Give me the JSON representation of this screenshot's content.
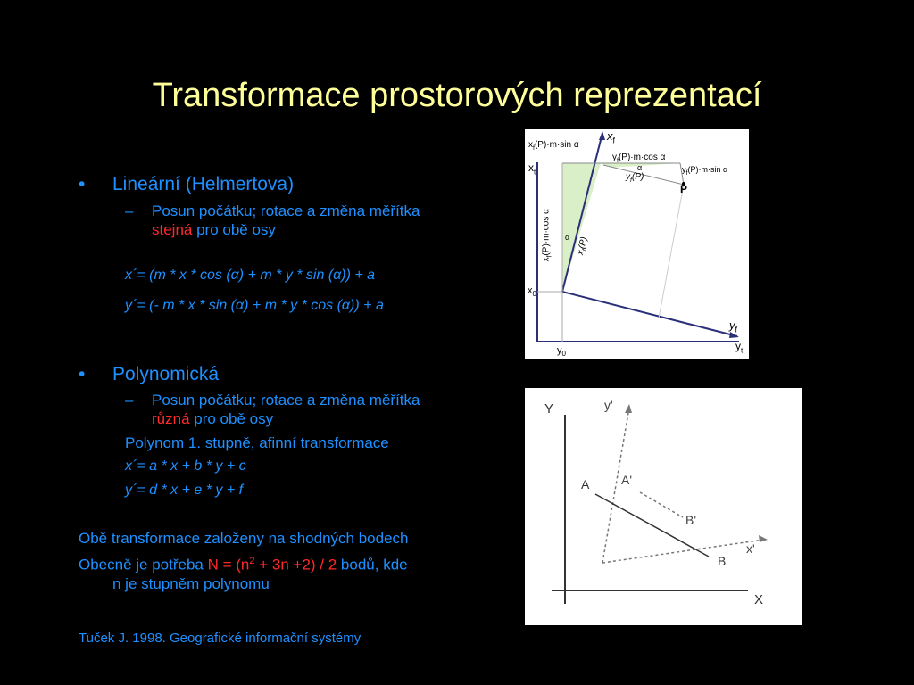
{
  "slide": {
    "title": "Transformace prostorových reprezentací",
    "bullets": [
      {
        "marker": "•",
        "label": "Lineární (Helmertova)",
        "sub": {
          "marker": "–",
          "line1": "Posun počátku; rotace a změna měřítka",
          "highlight": "stejná",
          "rest": " pro obě osy"
        },
        "formulas": [
          "x´= (m * x * cos (α) + m * y * sin (α)) + a",
          "y´= (- m * x * sin (α) + m * y * cos (α)) + a"
        ]
      },
      {
        "marker": "•",
        "label": "Polynomická",
        "sub": {
          "marker": "–",
          "line1": "Posun počátku; rotace a změna měřítka",
          "highlight": "různá",
          "rest": " pro obě osy"
        },
        "note": "Polynom 1. stupně, afinní transformace",
        "formulas": [
          "x´= a * x + b * y + c",
          "y´= d * x + e * y + f"
        ]
      }
    ],
    "para1": "Obě transformace založeny na shodných bodech",
    "para2": {
      "before": "Obecně je potřeba ",
      "formula_pre": "N = (n",
      "sup": "2",
      "formula_post": " + 3n +2) / 2",
      "after": "  bodů, kde",
      "line2": "n je stupněm polynomu"
    },
    "citation": "Tuček J. 1998. Geografické informační systémy"
  },
  "figure1": {
    "labels": {
      "xf": "x",
      "xf_sub": "f",
      "yf": "y",
      "yf_sub": "f",
      "xt": "x",
      "xt_sub": "t",
      "yt": "y",
      "yt_sub": "t",
      "x0": "x",
      "x0_sub": "0",
      "y0": "y",
      "y0_sub": "0",
      "top_left": "x",
      "top_left_mid": "f",
      "top_left_rest": "(P)·m·sin α",
      "top_mid": "y",
      "top_mid_sub": "f",
      "top_mid_rest": "(P)·m·cos α",
      "right": "y",
      "right_sub": "f",
      "right_rest": "(P)·m·sin α",
      "yfp": "y",
      "yfp_sub": "f",
      "yfp_rest": "(P)",
      "vert1": "x",
      "vert1_sub": "f",
      "vert1_rest": "(P)·m·cos α",
      "vert2": "x",
      "vert2_sub": "f",
      "vert2_rest": "(P)",
      "alpha": "α",
      "point": "P"
    }
  },
  "figure2": {
    "labels": {
      "Y": "Y",
      "X": "X",
      "yprime": "y'",
      "xprime": "x'",
      "A": "A",
      "B": "B",
      "Aprime": "A'",
      "Bprime": "B'"
    }
  },
  "colors": {
    "title": "#ffff99",
    "text": "#1e90ff",
    "highlight": "#ff2a2a",
    "figure_axes": "#2b2f7a",
    "figure_fill": "#d9efc8"
  }
}
